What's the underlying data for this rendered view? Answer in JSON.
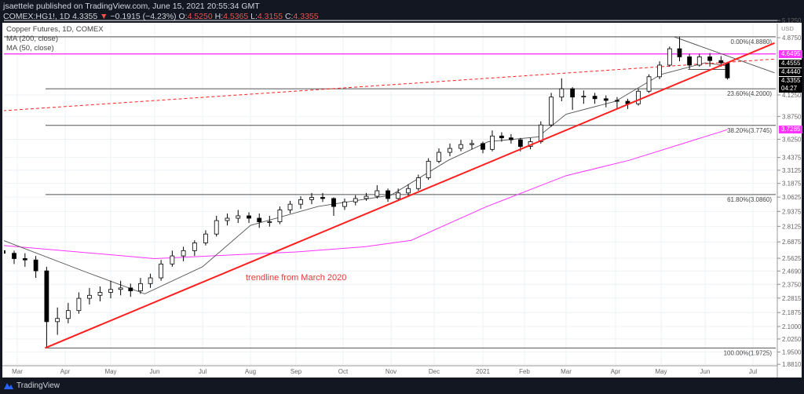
{
  "header": {
    "publisher_line": "jsaettele published on TradingView.com, June 15, 2021 20:55:34 GMT",
    "symbol": "COMEX:HG1!, 1D",
    "last": "4.3355",
    "change": "−0.1915 (−4.23%)",
    "open_label": "O:",
    "open": "4.5250",
    "high_label": "H:",
    "high": "4.5365",
    "low_label": "L:",
    "low": "4.3155",
    "close_label": "C:",
    "close": "4.3355",
    "down_icon": "triangle-down-icon"
  },
  "legend": {
    "title": "Copper Futures, 1D, COMEX",
    "ma200": "MA (200, close)",
    "ma50": "MA (50, close)"
  },
  "footer": {
    "brand": "TradingView",
    "logo_icon": "tradingview-logo-icon"
  },
  "colors": {
    "up": "#ffffff",
    "down": "#000000",
    "trendline": "#ff1f1f",
    "magenta": "#ff33ff",
    "ma50": "#555555",
    "background": "#131722"
  },
  "chart_data": {
    "type": "candlestick",
    "yscale": "log",
    "ylim": [
      1.86,
      5.2
    ],
    "currency": "USD",
    "y_ticks": [
      "5.1250",
      "4.8750",
      "4.1250",
      "3.8750",
      "3.6250",
      "3.4375",
      "3.3125",
      "3.1875",
      "3.0625",
      "2.9375",
      "2.8125",
      "2.6875",
      "2.5625",
      "2.4690",
      "2.3750",
      "2.2815",
      "2.1875",
      "2.1000",
      "2.0250",
      "1.9500",
      "1.8810"
    ],
    "x_ticks": [
      "Mar",
      "Apr",
      "May",
      "Jun",
      "Jul",
      "Aug",
      "Sep",
      "Oct",
      "Nov",
      "Dec",
      "2021",
      "Feb",
      "Mar",
      "Apr",
      "May",
      "Jun",
      "Jul"
    ],
    "grid": true,
    "ohlc": [
      [
        "2020-02-21",
        2.62,
        2.66,
        2.58,
        2.6
      ],
      [
        "2020-02-28",
        2.6,
        2.62,
        2.52,
        2.56
      ],
      [
        "2020-03-06",
        2.56,
        2.6,
        2.5,
        2.55
      ],
      [
        "2020-03-13",
        2.55,
        2.58,
        2.42,
        2.47
      ],
      [
        "2020-03-20",
        2.47,
        2.5,
        1.9725,
        2.13
      ],
      [
        "2020-03-27",
        2.13,
        2.22,
        2.05,
        2.15
      ],
      [
        "2020-04-03",
        2.15,
        2.25,
        2.12,
        2.2
      ],
      [
        "2020-04-10",
        2.2,
        2.32,
        2.18,
        2.28
      ],
      [
        "2020-04-17",
        2.28,
        2.35,
        2.24,
        2.3
      ],
      [
        "2020-04-24",
        2.3,
        2.36,
        2.26,
        2.32
      ],
      [
        "2020-05-01",
        2.32,
        2.4,
        2.28,
        2.34
      ],
      [
        "2020-05-08",
        2.34,
        2.4,
        2.3,
        2.35
      ],
      [
        "2020-05-15",
        2.35,
        2.38,
        2.29,
        2.33
      ],
      [
        "2020-05-22",
        2.33,
        2.42,
        2.31,
        2.38
      ],
      [
        "2020-05-29",
        2.38,
        2.45,
        2.35,
        2.42
      ],
      [
        "2020-06-05",
        2.42,
        2.55,
        2.4,
        2.52
      ],
      [
        "2020-06-12",
        2.52,
        2.62,
        2.5,
        2.58
      ],
      [
        "2020-06-19",
        2.58,
        2.65,
        2.54,
        2.62
      ],
      [
        "2020-06-26",
        2.62,
        2.7,
        2.58,
        2.68
      ],
      [
        "2020-07-03",
        2.68,
        2.78,
        2.66,
        2.75
      ],
      [
        "2020-07-10",
        2.75,
        2.9,
        2.73,
        2.86
      ],
      [
        "2020-07-17",
        2.86,
        2.92,
        2.82,
        2.88
      ],
      [
        "2020-07-24",
        2.88,
        2.95,
        2.84,
        2.9
      ],
      [
        "2020-07-31",
        2.9,
        2.93,
        2.84,
        2.88
      ],
      [
        "2020-08-07",
        2.88,
        2.92,
        2.8,
        2.85
      ],
      [
        "2020-08-14",
        2.85,
        2.9,
        2.81,
        2.85
      ],
      [
        "2020-08-21",
        2.85,
        2.98,
        2.83,
        2.95
      ],
      [
        "2020-08-28",
        2.95,
        3.03,
        2.92,
        3.0
      ],
      [
        "2020-09-04",
        3.0,
        3.07,
        2.96,
        3.04
      ],
      [
        "2020-09-11",
        3.04,
        3.1,
        3.0,
        3.06
      ],
      [
        "2020-09-18",
        3.06,
        3.1,
        3.02,
        3.05
      ],
      [
        "2020-09-25",
        3.05,
        3.06,
        2.9,
        2.98
      ],
      [
        "2020-10-02",
        2.98,
        3.05,
        2.95,
        3.02
      ],
      [
        "2020-10-09",
        3.02,
        3.08,
        2.99,
        3.05
      ],
      [
        "2020-10-16",
        3.05,
        3.1,
        3.03,
        3.07
      ],
      [
        "2020-10-23",
        3.07,
        3.17,
        3.05,
        3.12
      ],
      [
        "2020-10-30",
        3.12,
        3.14,
        3.02,
        3.05
      ],
      [
        "2020-11-06",
        3.05,
        3.14,
        3.03,
        3.1
      ],
      [
        "2020-11-13",
        3.1,
        3.18,
        3.07,
        3.14
      ],
      [
        "2020-11-20",
        3.14,
        3.27,
        3.12,
        3.24
      ],
      [
        "2020-11-27",
        3.24,
        3.43,
        3.22,
        3.4
      ],
      [
        "2020-12-04",
        3.4,
        3.53,
        3.38,
        3.49
      ],
      [
        "2020-12-11",
        3.49,
        3.58,
        3.45,
        3.53
      ],
      [
        "2020-12-18",
        3.53,
        3.62,
        3.5,
        3.57
      ],
      [
        "2020-12-25",
        3.57,
        3.62,
        3.52,
        3.58
      ],
      [
        "2021-01-01",
        3.58,
        3.6,
        3.48,
        3.52
      ],
      [
        "2021-01-08",
        3.52,
        3.72,
        3.5,
        3.66
      ],
      [
        "2021-01-15",
        3.66,
        3.7,
        3.6,
        3.64
      ],
      [
        "2021-01-22",
        3.64,
        3.68,
        3.58,
        3.62
      ],
      [
        "2021-01-29",
        3.62,
        3.64,
        3.5,
        3.55
      ],
      [
        "2021-02-05",
        3.55,
        3.64,
        3.52,
        3.6
      ],
      [
        "2021-02-12",
        3.6,
        3.82,
        3.58,
        3.78
      ],
      [
        "2021-02-19",
        3.78,
        4.15,
        3.76,
        4.1
      ],
      [
        "2021-02-26",
        4.1,
        4.33,
        4.05,
        4.2
      ],
      [
        "2021-03-05",
        4.2,
        4.22,
        3.95,
        4.1
      ],
      [
        "2021-03-12",
        4.1,
        4.18,
        4.02,
        4.11
      ],
      [
        "2021-03-19",
        4.11,
        4.15,
        4.02,
        4.08
      ],
      [
        "2021-03-26",
        4.08,
        4.12,
        3.98,
        4.06
      ],
      [
        "2021-04-02",
        4.06,
        4.1,
        3.97,
        4.05
      ],
      [
        "2021-04-09",
        4.05,
        4.08,
        3.96,
        4.02
      ],
      [
        "2021-04-16",
        4.02,
        4.2,
        4.0,
        4.17
      ],
      [
        "2021-04-23",
        4.17,
        4.38,
        4.15,
        4.35
      ],
      [
        "2021-04-30",
        4.35,
        4.55,
        4.32,
        4.5
      ],
      [
        "2021-05-07",
        4.5,
        4.75,
        4.48,
        4.72
      ],
      [
        "2021-05-14",
        4.72,
        4.888,
        4.55,
        4.61
      ],
      [
        "2021-05-21",
        4.61,
        4.65,
        4.45,
        4.5
      ],
      [
        "2021-05-28",
        4.5,
        4.65,
        4.48,
        4.61
      ],
      [
        "2021-06-04",
        4.61,
        4.66,
        4.48,
        4.56
      ],
      [
        "2021-06-11",
        4.56,
        4.62,
        4.48,
        4.53
      ],
      [
        "2021-06-15",
        4.525,
        4.5365,
        4.3155,
        4.3355
      ]
    ],
    "ma200": [
      [
        "2020-02-21",
        2.66
      ],
      [
        "2020-06-01",
        2.56
      ],
      [
        "2020-09-01",
        2.61
      ],
      [
        "2020-10-15",
        2.65
      ],
      [
        "2020-11-15",
        2.7
      ],
      [
        "2021-01-04",
        2.98
      ],
      [
        "2021-03-01",
        3.26
      ],
      [
        "2021-04-10",
        3.41
      ],
      [
        "2021-06-15",
        3.7285
      ]
    ],
    "ma50": [
      [
        "2020-02-21",
        2.7
      ],
      [
        "2020-04-15",
        2.46
      ],
      [
        "2020-05-25",
        2.31
      ],
      [
        "2020-07-01",
        2.5
      ],
      [
        "2020-08-01",
        2.82
      ],
      [
        "2020-09-15",
        2.98
      ],
      [
        "2020-11-01",
        3.08
      ],
      [
        "2020-12-10",
        3.41
      ],
      [
        "2021-01-05",
        3.6
      ],
      [
        "2021-02-10",
        3.65
      ],
      [
        "2021-03-01",
        3.9
      ],
      [
        "2021-04-01",
        4.05
      ],
      [
        "2021-05-01",
        4.38
      ],
      [
        "2021-06-01",
        4.53
      ],
      [
        "2021-06-15",
        4.49
      ]
    ],
    "fibonacci": [
      {
        "label": "0.00%(4.8880)",
        "value": 4.888
      },
      {
        "label": "23.60%(4.2000)",
        "value": 4.2
      },
      {
        "label": "38.20%(3.7745)",
        "value": 3.7745
      },
      {
        "label": "61.80%(3.0860)",
        "value": 3.086
      },
      {
        "label": "100.00%(1.9725)",
        "value": 1.9725
      }
    ],
    "horizontal_level": 4.6495,
    "trendline": {
      "from": [
        "2020-03-19",
        1.9725
      ],
      "to": [
        "2021-07-15",
        4.8
      ]
    },
    "dashed_trendline": {
      "from": [
        "2020-02-21",
        3.94
      ],
      "to": [
        "2021-07-15",
        4.58
      ]
    },
    "triangle_upper": {
      "from": [
        "2021-05-10",
        4.888
      ],
      "to": [
        "2021-07-15",
        4.4
      ]
    },
    "triangle_lower": {
      "from": [
        "2021-05-20",
        4.444
      ],
      "to": [
        "2021-06-14",
        4.444
      ]
    },
    "annotation": "trendline from March 2020",
    "price_labels": [
      {
        "text": "4.6495",
        "value": 4.6495,
        "style": "magenta"
      },
      {
        "text": "4.4555",
        "value": 4.4555,
        "style": "dark"
      },
      {
        "text": "4.4440",
        "value": 4.444,
        "style": "dark"
      },
      {
        "text": "4.3355",
        "value": 4.3355,
        "style": "dark",
        "sub": "04:27"
      },
      {
        "text": "3.7285",
        "value": 3.7285,
        "style": "magenta"
      }
    ]
  }
}
